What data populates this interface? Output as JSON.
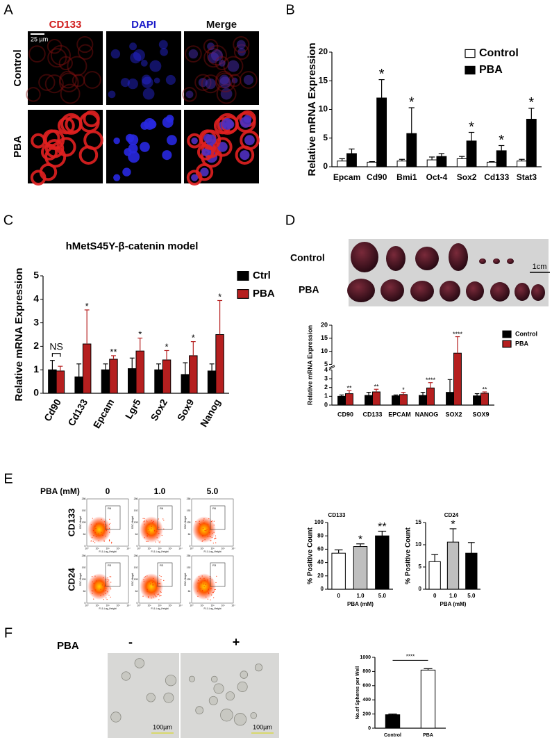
{
  "panel_labels": [
    "A",
    "B",
    "C",
    "D",
    "E",
    "F"
  ],
  "panel_a": {
    "columns": [
      "CD133",
      "DAPI",
      "Merge"
    ],
    "rows": [
      "Control",
      "PBA"
    ],
    "scale_bar": "25 µm"
  },
  "panel_d": {
    "rows": [
      "Control",
      "PBA"
    ],
    "scale_bar": "1cm"
  },
  "panel_e": {
    "title": "PBA (mM)",
    "doses": [
      "0",
      "1.0",
      "5.0"
    ],
    "markers": [
      "CD133",
      "CD24"
    ],
    "gates": [
      "R6",
      "R3"
    ],
    "y_axis_label": "SSC-Height",
    "x_axis_label": "FL1-Log_Height",
    "yticks": [
      0,
      64,
      128,
      192,
      256
    ],
    "xticks": [
      "10⁰",
      "10¹",
      "10²",
      "10³",
      "10⁴"
    ]
  },
  "panel_f": {
    "label": "PBA",
    "conditions": [
      "-",
      "+"
    ],
    "scale_bar": "100µm"
  },
  "chart_data": [
    {
      "type": "bar",
      "y_label": "Relative mRNA Expression",
      "categories": [
        "Epcam",
        "Cd90",
        "Bmi1",
        "Oct-4",
        "Sox2",
        "Cd133",
        "Stat3"
      ],
      "series": [
        {
          "name": "Control",
          "color": "#ffffff",
          "values": [
            1.0,
            0.8,
            1.0,
            1.2,
            1.4,
            0.8,
            1.0
          ],
          "errors": [
            0.4,
            0.1,
            0.3,
            0.5,
            0.4,
            0.1,
            0.3
          ]
        },
        {
          "name": "PBA",
          "color": "#000000",
          "values": [
            2.3,
            12.0,
            5.8,
            1.8,
            4.5,
            2.8,
            8.3
          ],
          "errors": [
            0.8,
            3.2,
            4.5,
            0.5,
            1.5,
            0.9,
            1.9
          ],
          "significance": [
            null,
            "*",
            "*",
            null,
            "*",
            "*",
            "*"
          ]
        }
      ],
      "ylim": [
        0,
        20
      ],
      "yticks": [
        0,
        5,
        10,
        15,
        20
      ]
    },
    {
      "type": "bar",
      "title": "hMetS45Y-β-catenin model",
      "y_label": "Relative mRNA Expression",
      "categories": [
        "Cd90",
        "Cd133",
        "Epcam",
        "Lgr5",
        "Sox2",
        "Sox9",
        "Nanog"
      ],
      "series": [
        {
          "name": "Ctrl",
          "color": "#000000",
          "values": [
            1.0,
            0.7,
            1.0,
            1.05,
            1.0,
            0.8,
            0.95
          ],
          "errors": [
            0.4,
            0.55,
            0.25,
            0.45,
            0.25,
            0.5,
            0.3
          ]
        },
        {
          "name": "PBA",
          "color": "#b51f1f",
          "values": [
            0.95,
            2.1,
            1.45,
            1.8,
            1.42,
            1.6,
            2.5
          ],
          "errors": [
            0.2,
            1.45,
            0.15,
            0.55,
            0.4,
            0.6,
            1.45
          ],
          "significance": [
            "NS",
            "*",
            "**",
            "*",
            "*",
            "*",
            "*"
          ]
        }
      ],
      "ylim": [
        0,
        5
      ],
      "yticks": [
        0,
        1,
        2,
        3,
        4,
        5
      ]
    },
    {
      "type": "bar",
      "y_label": "Relative mRNA Expression",
      "categories": [
        "CD90",
        "CD133",
        "EPCAM",
        "NANOG",
        "SOX2",
        "SOX9"
      ],
      "series": [
        {
          "name": "Control",
          "color": "#000000",
          "values": [
            1.0,
            1.1,
            1.05,
            1.1,
            1.45,
            1.05
          ],
          "errors": [
            0.15,
            0.35,
            0.1,
            0.35,
            1.45,
            0.25
          ]
        },
        {
          "name": "PBA",
          "color": "#b51f1f",
          "values": [
            1.3,
            1.5,
            1.2,
            1.95,
            9.3,
            1.35
          ],
          "errors": [
            0.35,
            0.3,
            0.25,
            0.6,
            6.3,
            0.15
          ],
          "significance": [
            "**",
            "**",
            "*",
            "****",
            "****",
            "**"
          ]
        }
      ],
      "ylim": [
        0,
        20
      ],
      "axis_break": [
        4,
        5
      ],
      "yticks": [
        0,
        1,
        2,
        3,
        4,
        5,
        10,
        15,
        20
      ]
    },
    {
      "type": "bar",
      "title": "CD133",
      "y_label": "% Positive Count",
      "x_label": "PBA (mM)",
      "categories": [
        "0",
        "1.0",
        "5.0"
      ],
      "values": [
        54,
        64,
        80
      ],
      "errors": [
        5,
        4,
        7
      ],
      "colors": [
        "#ffffff",
        "#bfbfbf",
        "#000000"
      ],
      "significance": [
        null,
        "*",
        "**"
      ],
      "ylim": [
        0,
        100
      ],
      "yticks": [
        0,
        20,
        40,
        60,
        80,
        100
      ]
    },
    {
      "type": "bar",
      "title": "CD24",
      "y_label": "% Positive Count",
      "x_label": "PBA (mM)",
      "categories": [
        "0",
        "1.0",
        "5.0"
      ],
      "values": [
        6.2,
        10.6,
        8.1
      ],
      "errors": [
        1.6,
        3.0,
        2.4
      ],
      "colors": [
        "#ffffff",
        "#bfbfbf",
        "#000000"
      ],
      "significance": [
        null,
        "*",
        null
      ],
      "ylim": [
        0,
        15
      ],
      "yticks": [
        0,
        5,
        10,
        15
      ]
    },
    {
      "type": "bar",
      "y_label": "No.of Spheres per Well",
      "categories": [
        "Control",
        "PBA"
      ],
      "values": [
        190,
        820
      ],
      "errors": [
        10,
        20
      ],
      "colors": [
        "#000000",
        "#ffffff"
      ],
      "bracket": "****",
      "ylim": [
        0,
        1000
      ],
      "yticks": [
        0,
        200,
        400,
        600,
        800,
        1000
      ]
    }
  ]
}
